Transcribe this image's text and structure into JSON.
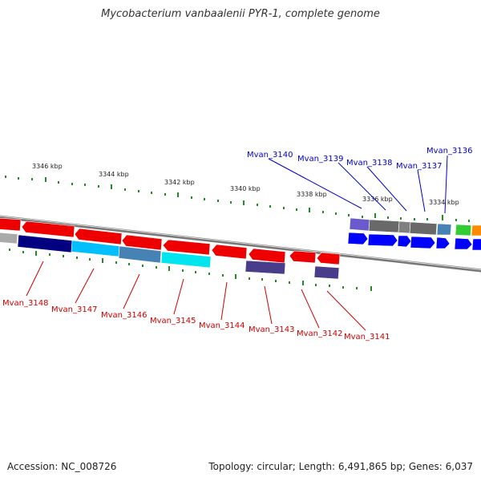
{
  "title": "Mycobacterium vanbaalenii PYR-1, complete genome",
  "footer": {
    "accession": "Accession: NC_008726",
    "stats": "Topology: circular; Length: 6,491,865 bp; Genes: 6,037"
  },
  "colors": {
    "forward_label": "#0000cc",
    "reverse_label": "#cc0000",
    "backbone": "#888888",
    "ticks": "#228b22"
  },
  "ticks": [
    "3346 kbp",
    "3344 kbp",
    "3342 kbp",
    "3340 kbp",
    "3338 kbp",
    "3336 kbp",
    "3334 kbp"
  ],
  "top_labels": [
    "Mvan_3140",
    "Mvan_3139",
    "Mvan_3138",
    "Mvan_3137",
    "Mvan_3136"
  ],
  "bottom_labels": [
    "Mvan_3148",
    "Mvan_3147",
    "Mvan_3146",
    "Mvan_3145",
    "Mvan_3144",
    "Mvan_3143",
    "Mvan_3142",
    "Mvan_3141"
  ]
}
